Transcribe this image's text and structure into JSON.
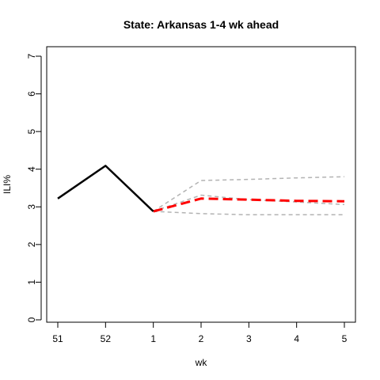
{
  "chart_data": {
    "type": "line",
    "title": "State: Arkansas 1-4 wk ahead",
    "xlabel": "wk",
    "ylabel": "ILI%",
    "x_ticks": [
      "51",
      "52",
      "1",
      "2",
      "3",
      "4",
      "5"
    ],
    "y_ticks": [
      "0",
      "1",
      "2",
      "3",
      "4",
      "5",
      "6",
      "7"
    ],
    "ylim": [
      0,
      7
    ],
    "grid": false,
    "series": [
      {
        "role": "observed",
        "color": "#000000",
        "style": "solid",
        "x": [
          "51",
          "52",
          "1"
        ],
        "values": [
          3.22,
          4.09,
          2.88
        ]
      },
      {
        "role": "forecast",
        "color": "#ff0000",
        "style": "dashed",
        "x": [
          "1",
          "2",
          "3",
          "4",
          "5"
        ],
        "values": [
          2.88,
          3.22,
          3.19,
          3.16,
          3.15
        ]
      },
      {
        "role": "upper",
        "color": "#b3b3b3",
        "style": "dashed",
        "x": [
          "1",
          "2",
          "3",
          "4",
          "5"
        ],
        "values": [
          2.88,
          3.7,
          3.73,
          3.77,
          3.8
        ]
      },
      {
        "role": "mid",
        "color": "#b3b3b3",
        "style": "dashed",
        "x": [
          "1",
          "2",
          "3",
          "4",
          "5"
        ],
        "values": [
          2.88,
          3.31,
          3.19,
          3.13,
          3.06
        ]
      },
      {
        "role": "lower",
        "color": "#b3b3b3",
        "style": "dashed",
        "x": [
          "1",
          "2",
          "3",
          "4",
          "5"
        ],
        "values": [
          2.88,
          2.82,
          2.79,
          2.79,
          2.79
        ]
      }
    ]
  }
}
